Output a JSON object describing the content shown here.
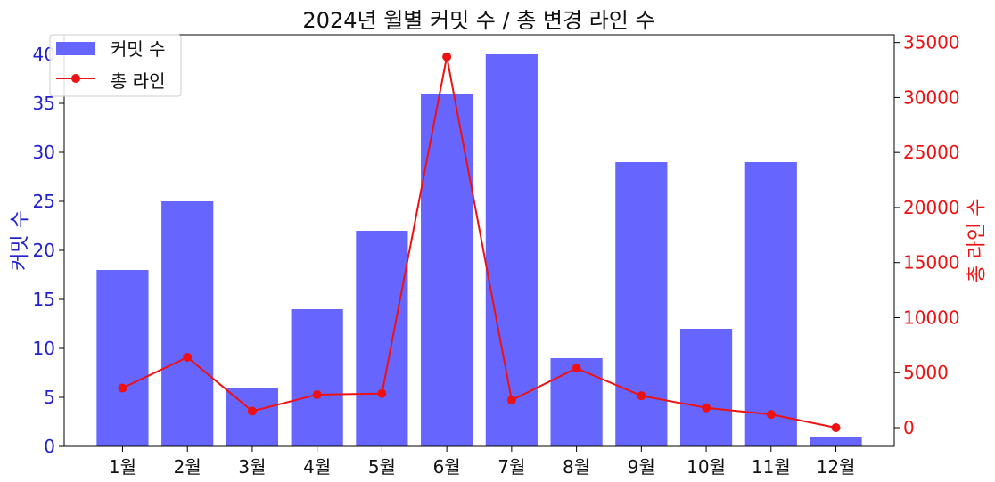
{
  "chart_data": {
    "type": "bar",
    "title": "2024년 월별 커밋 수 / 총 변경 라인 수",
    "categories": [
      "1월",
      "2월",
      "3월",
      "4월",
      "5월",
      "6월",
      "7월",
      "8월",
      "9월",
      "10월",
      "11월",
      "12월"
    ],
    "series": [
      {
        "name": "커밋 수",
        "type": "bar",
        "axis": "left",
        "values": [
          18,
          25,
          6,
          14,
          22,
          36,
          40,
          9,
          29,
          12,
          29,
          1
        ]
      },
      {
        "name": "총 라인",
        "type": "line",
        "axis": "right",
        "values": [
          3600,
          6400,
          1500,
          3000,
          3100,
          33700,
          2500,
          5400,
          2900,
          1800,
          1200,
          0
        ]
      }
    ],
    "y_left": {
      "label": "커밋 수",
      "range": [
        0,
        42
      ],
      "ticks": [
        0,
        5,
        10,
        15,
        20,
        25,
        30,
        35,
        40
      ]
    },
    "y_right": {
      "label": "총 라인 수",
      "range": [
        -1700,
        35700
      ],
      "ticks": [
        0,
        5000,
        10000,
        15000,
        20000,
        25000,
        30000,
        35000
      ]
    },
    "grid": false,
    "legend_position": "top-left",
    "colors": {
      "bar": "#6666ff",
      "line": "#ee1111",
      "left_axis": "#2222cc",
      "right_axis": "#ee1111"
    }
  }
}
